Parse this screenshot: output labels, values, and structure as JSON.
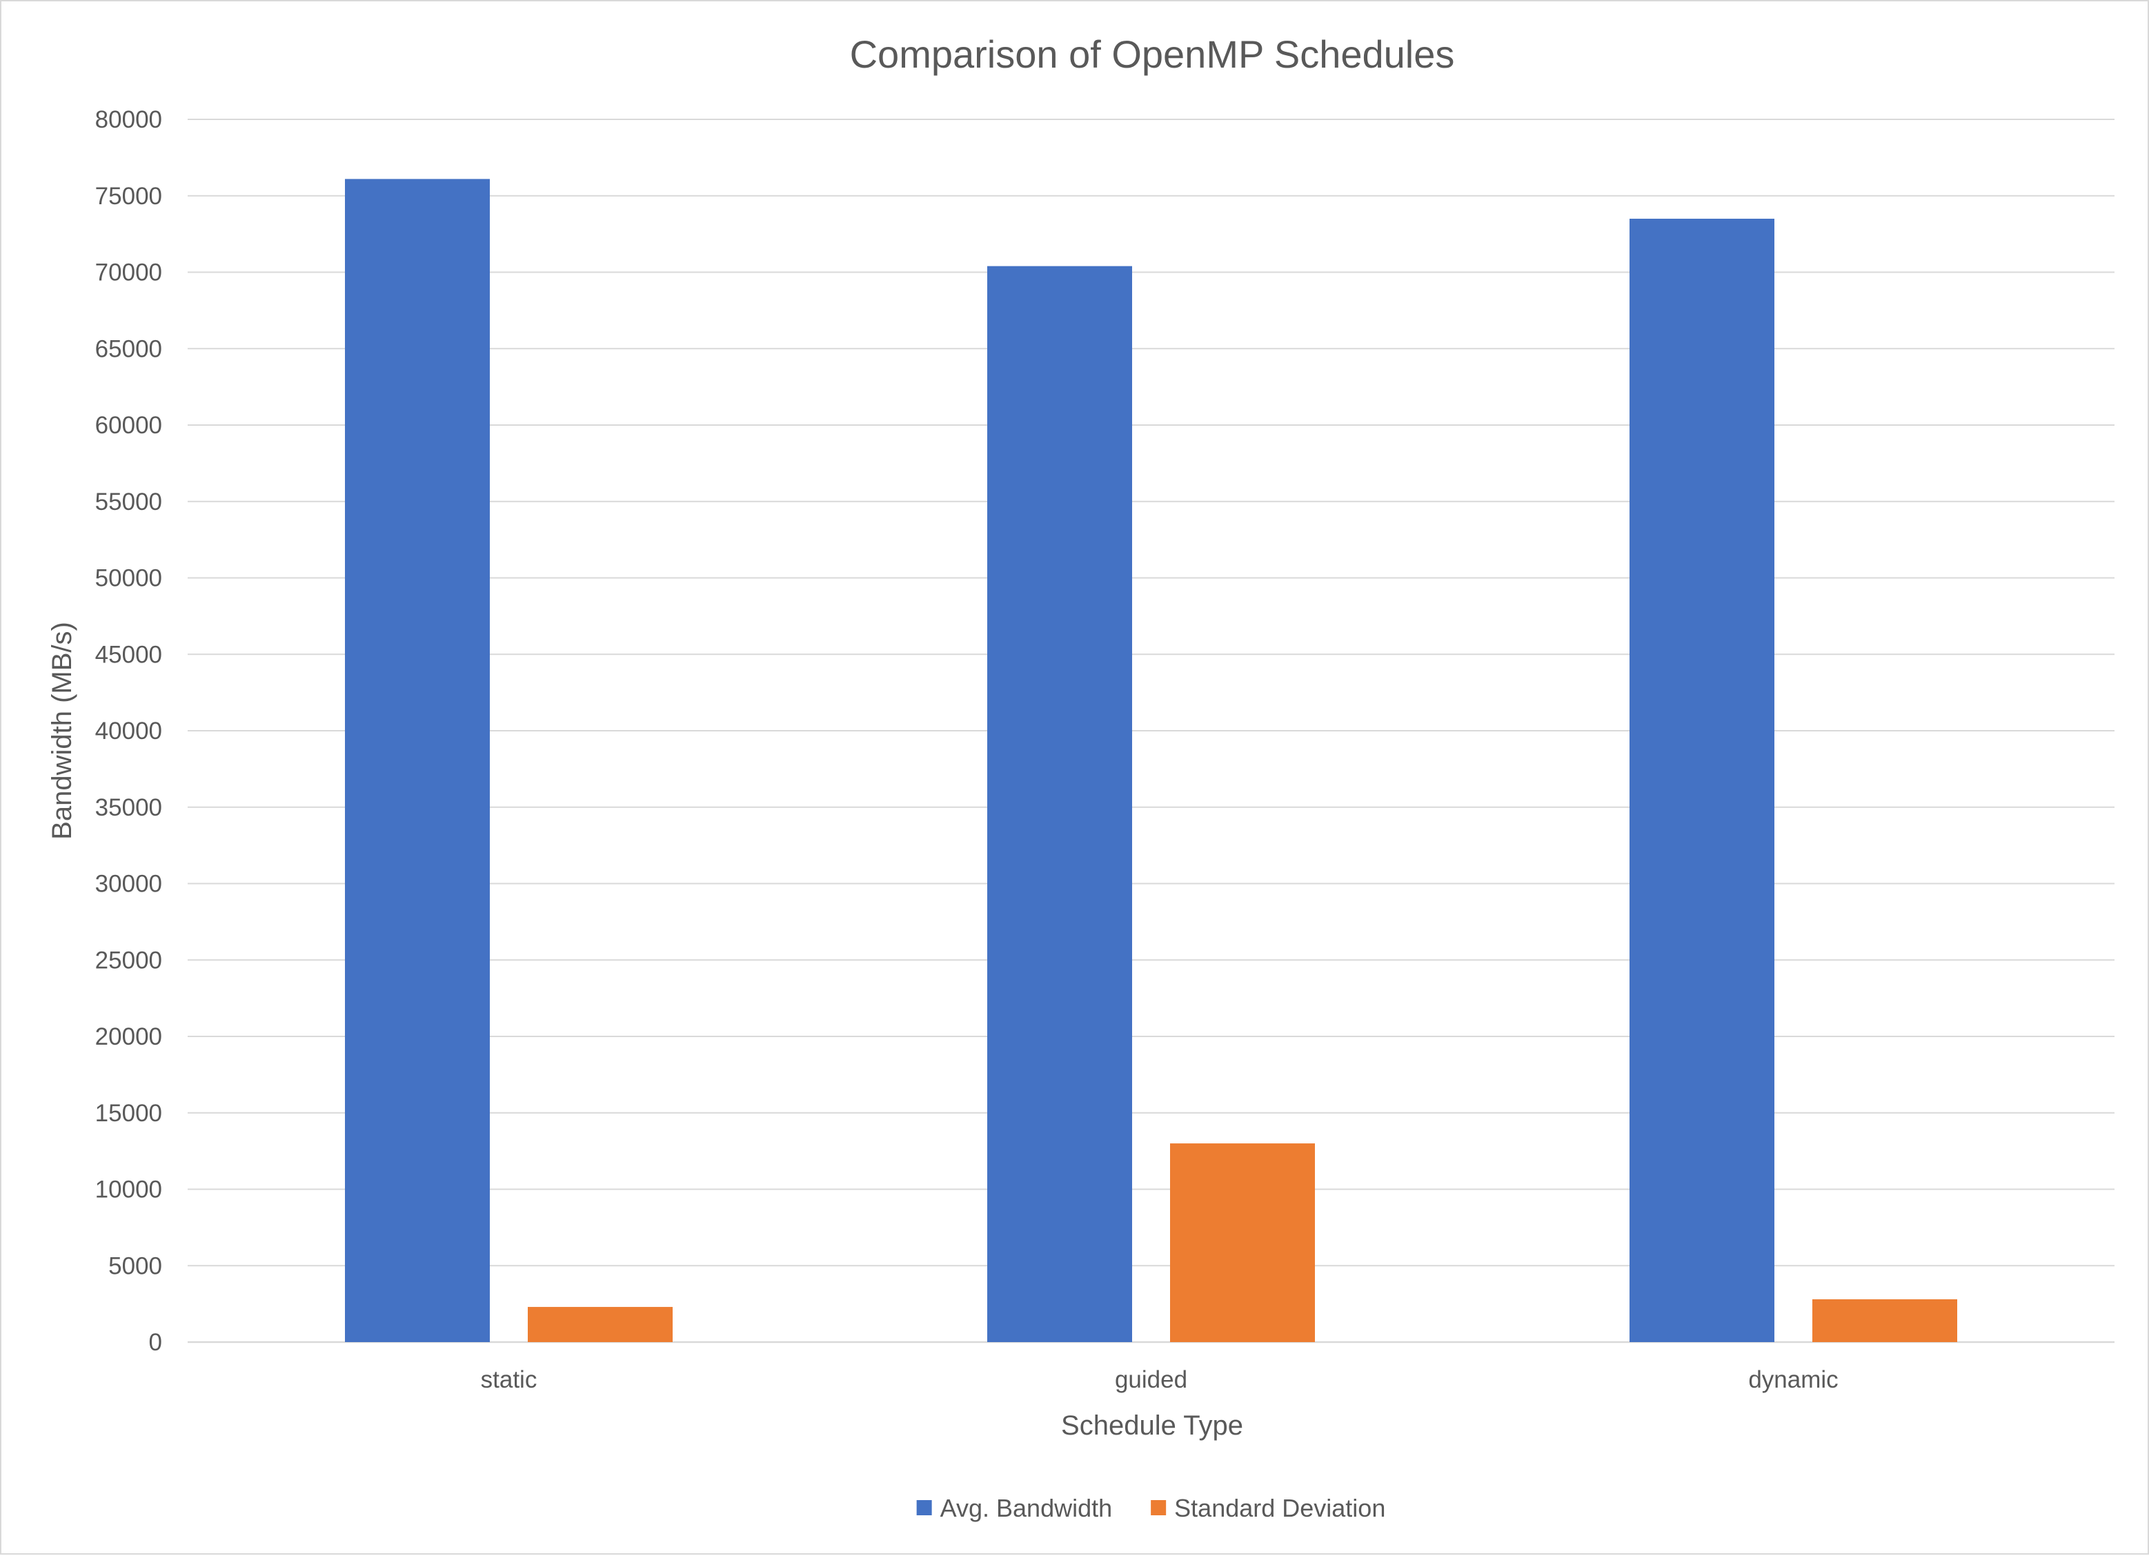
{
  "chart_data": {
    "type": "bar",
    "title": "Comparison of OpenMP Schedules",
    "xlabel": "Schedule Type",
    "ylabel": "Bandwidth (MB/s)",
    "categories": [
      "static",
      "guided",
      "dynamic"
    ],
    "series": [
      {
        "name": "Avg. Bandwidth",
        "color": "#4472c4",
        "values": [
          76100,
          70400,
          73500
        ]
      },
      {
        "name": "Standard Deviation",
        "color": "#ed7d31",
        "values": [
          2300,
          13000,
          2800
        ]
      }
    ],
    "ylim": [
      0,
      80000
    ],
    "yticks": [
      0,
      5000,
      10000,
      15000,
      20000,
      25000,
      30000,
      35000,
      40000,
      45000,
      50000,
      55000,
      60000,
      65000,
      70000,
      75000,
      80000
    ],
    "grid": true,
    "legend_position": "bottom"
  }
}
